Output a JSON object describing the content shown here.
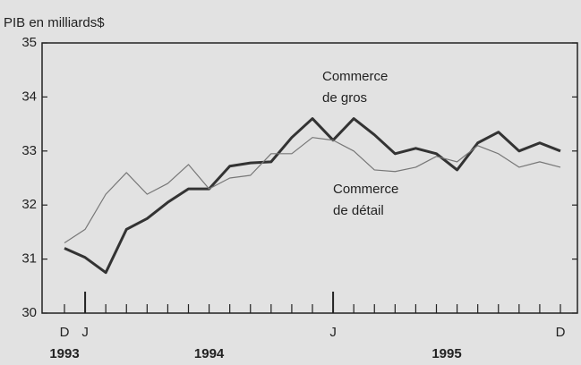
{
  "chart_data": {
    "type": "line",
    "ylabel": "PIB en milliards$",
    "categories": [
      "D",
      "J",
      null,
      null,
      null,
      null,
      null,
      null,
      null,
      null,
      null,
      null,
      null,
      "J",
      null,
      null,
      null,
      null,
      null,
      null,
      null,
      null,
      null,
      null,
      "D"
    ],
    "x_groups": [
      {
        "label": "1993",
        "start": 0,
        "end": 0
      },
      {
        "label": "1994",
        "start": 1,
        "end": 12
      },
      {
        "label": "1995",
        "start": 13,
        "end": 24
      }
    ],
    "series": [
      {
        "name": "Commerce de gros",
        "color": "#333333",
        "width": "thick",
        "values": [
          31.2,
          31.03,
          30.75,
          31.55,
          31.75,
          32.05,
          32.3,
          32.3,
          32.72,
          32.78,
          32.8,
          33.25,
          33.6,
          33.2,
          33.6,
          33.3,
          32.95,
          33.05,
          32.95,
          32.65,
          33.15,
          33.35,
          33.0,
          33.15,
          33.0
        ]
      },
      {
        "name": "Commerce de détail",
        "color": "#777777",
        "width": "thin",
        "values": [
          31.3,
          31.55,
          32.2,
          32.6,
          32.2,
          32.4,
          32.75,
          32.3,
          32.5,
          32.55,
          32.95,
          32.95,
          33.25,
          33.2,
          33.0,
          32.65,
          32.62,
          32.7,
          32.9,
          32.8,
          33.1,
          32.95,
          32.7,
          32.8,
          32.7
        ]
      }
    ],
    "ylim": [
      30,
      35
    ],
    "yticks": [
      30,
      31,
      32,
      33,
      34,
      35
    ]
  }
}
